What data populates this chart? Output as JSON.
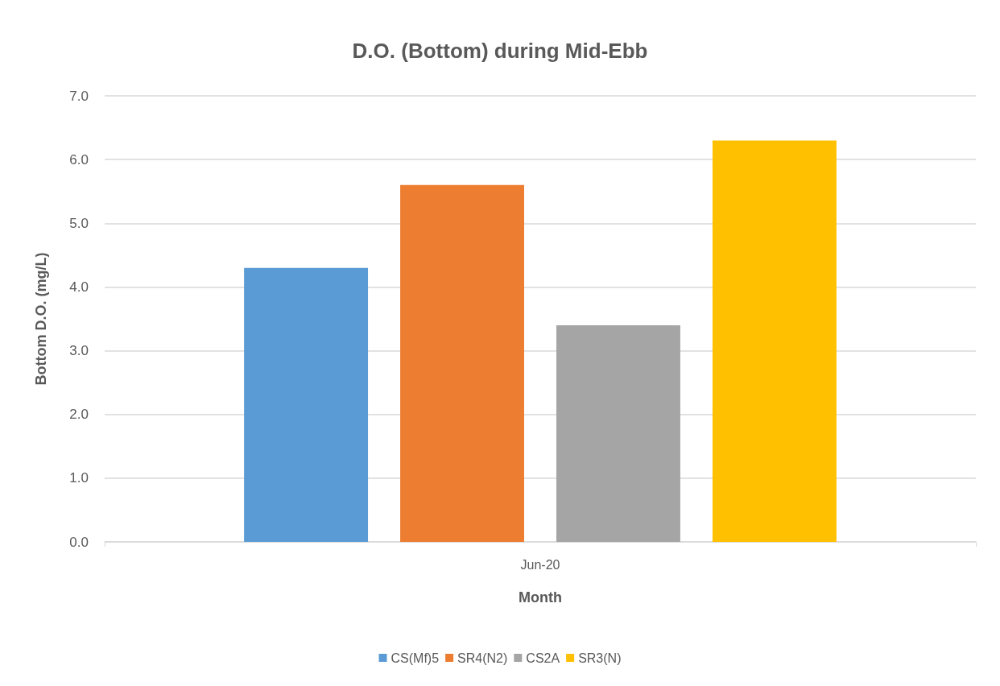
{
  "chart_data": {
    "type": "bar",
    "title": "D.O. (Bottom) during Mid-Ebb",
    "xlabel": "Month",
    "ylabel": "Bottom D.O. (mg/L)",
    "categories": [
      "Jun-20"
    ],
    "series": [
      {
        "name": "CS(Mf)5",
        "color": "#5b9bd5",
        "values": [
          4.3
        ]
      },
      {
        "name": "SR4(N2)",
        "color": "#ed7d31",
        "values": [
          5.6
        ]
      },
      {
        "name": "CS2A",
        "color": "#a5a5a5",
        "values": [
          3.4
        ]
      },
      {
        "name": "SR3(N)",
        "color": "#ffc000",
        "values": [
          6.3
        ]
      }
    ],
    "ylim": [
      0,
      7
    ],
    "yticks": [
      {
        "value": 0,
        "label": "0.0"
      },
      {
        "value": 1,
        "label": "1.0"
      },
      {
        "value": 2,
        "label": "2.0"
      },
      {
        "value": 3,
        "label": "3.0"
      },
      {
        "value": 4,
        "label": "4.0"
      },
      {
        "value": 5,
        "label": "5.0"
      },
      {
        "value": 6,
        "label": "6.0"
      },
      {
        "value": 7,
        "label": "7.0"
      }
    ],
    "grid": "y",
    "legend": "bottom"
  }
}
